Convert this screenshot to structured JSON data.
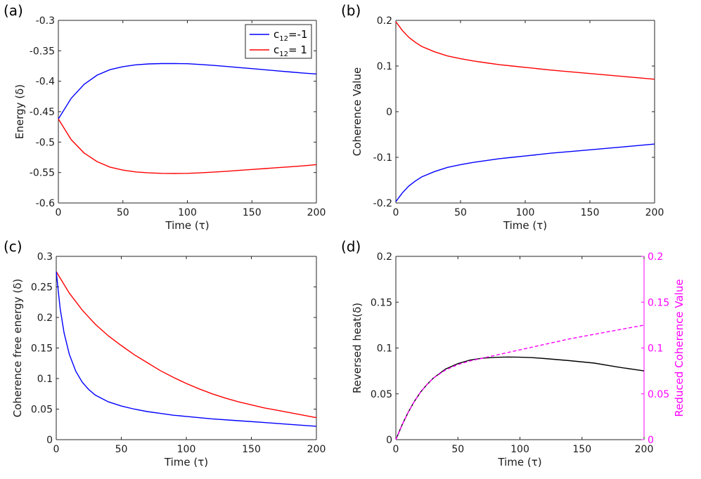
{
  "chart_data": [
    {
      "panel": "(a)",
      "type": "line",
      "xlabel": "Time (τ)",
      "ylabel": "Energy (δ)",
      "xlim": [
        0,
        200
      ],
      "ylim": [
        -0.6,
        -0.3
      ],
      "xticks": [
        "0",
        "50",
        "100",
        "150",
        "200"
      ],
      "yticks": [
        "-0.6",
        "-0.55",
        "-0.5",
        "-0.45",
        "-0.4",
        "-0.35",
        "-0.3"
      ],
      "legend": {
        "placement": "top-right",
        "entries": [
          {
            "base": "c",
            "sub": "12",
            "rest": "=-1"
          },
          {
            "base": "c",
            "sub": "12",
            "rest": "= 1"
          }
        ]
      },
      "series": [
        {
          "name": "c12=-1",
          "color": "#0000ff",
          "x": [
            0,
            10,
            20,
            30,
            40,
            50,
            60,
            70,
            80,
            90,
            100,
            110,
            120,
            130,
            140,
            150,
            160,
            170,
            180,
            190,
            200
          ],
          "y": [
            -0.462,
            -0.428,
            -0.405,
            -0.39,
            -0.381,
            -0.376,
            -0.373,
            -0.3715,
            -0.371,
            -0.371,
            -0.3712,
            -0.3725,
            -0.374,
            -0.3757,
            -0.3775,
            -0.3793,
            -0.3811,
            -0.383,
            -0.3848,
            -0.3866,
            -0.388
          ]
        },
        {
          "name": "c12= 1",
          "color": "#ff0000",
          "x": [
            0,
            10,
            20,
            30,
            40,
            50,
            60,
            70,
            80,
            90,
            100,
            110,
            120,
            130,
            140,
            150,
            160,
            170,
            180,
            190,
            200
          ],
          "y": [
            -0.462,
            -0.496,
            -0.518,
            -0.532,
            -0.541,
            -0.546,
            -0.549,
            -0.5505,
            -0.5513,
            -0.5515,
            -0.5513,
            -0.5505,
            -0.5493,
            -0.548,
            -0.5465,
            -0.545,
            -0.5435,
            -0.542,
            -0.5405,
            -0.539,
            -0.537
          ]
        }
      ]
    },
    {
      "panel": "(b)",
      "type": "line",
      "xlabel": "Time (τ)",
      "ylabel": "Coherence Value",
      "xlim": [
        0,
        200
      ],
      "ylim": [
        -0.2,
        0.2
      ],
      "xticks": [
        "0",
        "50",
        "100",
        "150",
        "200"
      ],
      "yticks": [
        "-0.2",
        "-0.1",
        "0",
        "0.1",
        "0.2"
      ],
      "series": [
        {
          "color": "#ff0000",
          "x": [
            0,
            5,
            10,
            15,
            20,
            30,
            40,
            50,
            60,
            70,
            80,
            90,
            100,
            120,
            140,
            160,
            180,
            200
          ],
          "y": [
            0.197,
            0.178,
            0.163,
            0.152,
            0.143,
            0.131,
            0.122,
            0.116,
            0.111,
            0.107,
            0.103,
            0.1,
            0.097,
            0.091,
            0.086,
            0.081,
            0.076,
            0.071
          ]
        },
        {
          "color": "#0000ff",
          "x": [
            0,
            5,
            10,
            15,
            20,
            30,
            40,
            50,
            60,
            70,
            80,
            90,
            100,
            120,
            140,
            160,
            180,
            200
          ],
          "y": [
            -0.197,
            -0.178,
            -0.163,
            -0.152,
            -0.143,
            -0.131,
            -0.122,
            -0.116,
            -0.111,
            -0.107,
            -0.103,
            -0.1,
            -0.097,
            -0.091,
            -0.086,
            -0.081,
            -0.076,
            -0.071
          ]
        }
      ]
    },
    {
      "panel": "(c)",
      "type": "line",
      "xlabel": "Time (τ)",
      "ylabel": "Coherence free energy (δ)",
      "xlim": [
        0,
        200
      ],
      "ylim": [
        0,
        0.3
      ],
      "xticks": [
        "0",
        "50",
        "100",
        "150",
        "200"
      ],
      "yticks": [
        "0",
        "0.05",
        "0.1",
        "0.15",
        "0.2",
        "0.25",
        "0.3"
      ],
      "series": [
        {
          "color": "#ff0000",
          "x": [
            0,
            10,
            20,
            30,
            40,
            50,
            60,
            70,
            80,
            90,
            100,
            110,
            120,
            130,
            140,
            150,
            160,
            170,
            180,
            190,
            200
          ],
          "y": [
            0.275,
            0.24,
            0.212,
            0.189,
            0.17,
            0.154,
            0.139,
            0.126,
            0.113,
            0.102,
            0.092,
            0.083,
            0.075,
            0.068,
            0.062,
            0.057,
            0.052,
            0.048,
            0.044,
            0.04,
            0.036
          ]
        },
        {
          "color": "#0000ff",
          "x": [
            0,
            3,
            6,
            10,
            15,
            20,
            25,
            30,
            40,
            50,
            60,
            70,
            80,
            90,
            100,
            120,
            140,
            160,
            180,
            200
          ],
          "y": [
            0.275,
            0.215,
            0.175,
            0.14,
            0.112,
            0.094,
            0.082,
            0.073,
            0.062,
            0.055,
            0.05,
            0.046,
            0.043,
            0.04,
            0.038,
            0.034,
            0.031,
            0.028,
            0.025,
            0.022
          ]
        }
      ]
    },
    {
      "panel": "(d)",
      "type": "line",
      "xlabel": "Time (τ)",
      "ylabel": "Reversed heat(δ)",
      "ylabel_right": "Reduced Coherence Value",
      "xlim": [
        0,
        200
      ],
      "ylim": [
        0,
        0.2
      ],
      "ylim_right": [
        0,
        0.2
      ],
      "xticks": [
        "0",
        "50",
        "100",
        "150",
        "200"
      ],
      "yticks": [
        "0",
        "0.05",
        "0.1",
        "0.15",
        "0.2"
      ],
      "yticks_right": [
        "0",
        "0.05",
        "0.1",
        "0.15",
        "0.2"
      ],
      "right_axis_color": "#ff00ff",
      "series": [
        {
          "color": "#000000",
          "style": "solid",
          "axis": "left",
          "x": [
            0,
            5,
            10,
            15,
            20,
            25,
            30,
            40,
            50,
            60,
            70,
            80,
            90,
            100,
            110,
            120,
            140,
            160,
            180,
            200
          ],
          "y": [
            0,
            0.016,
            0.03,
            0.042,
            0.052,
            0.06,
            0.067,
            0.077,
            0.083,
            0.087,
            0.089,
            0.0898,
            0.0902,
            0.09,
            0.0895,
            0.0885,
            0.0862,
            0.0835,
            0.079,
            0.075
          ]
        },
        {
          "color": "#ff00ff",
          "style": "dashed",
          "axis": "right",
          "x": [
            0,
            5,
            10,
            15,
            20,
            25,
            30,
            40,
            50,
            60,
            70,
            80,
            90,
            100,
            110,
            120,
            140,
            160,
            180,
            200
          ],
          "y": [
            0,
            0.016,
            0.03,
            0.042,
            0.052,
            0.06,
            0.067,
            0.076,
            0.082,
            0.086,
            0.089,
            0.092,
            0.095,
            0.098,
            0.101,
            0.104,
            0.11,
            0.115,
            0.12,
            0.125
          ]
        }
      ]
    }
  ]
}
